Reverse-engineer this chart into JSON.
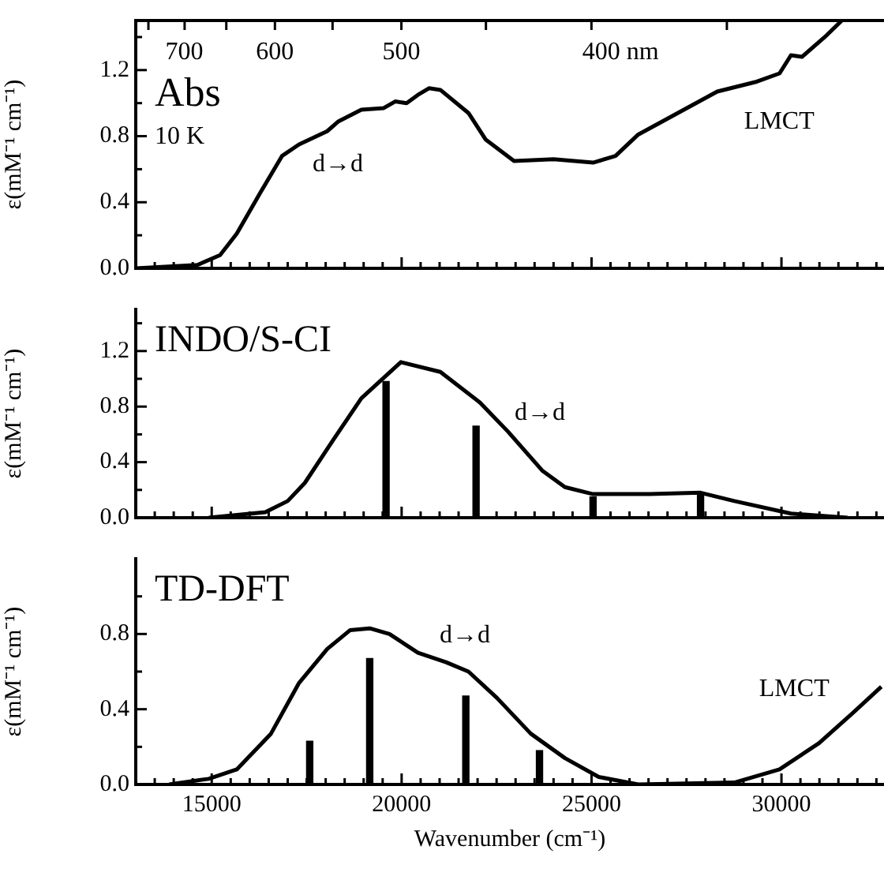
{
  "chart_data": [
    {
      "type": "line",
      "title": "Abs",
      "subtitle": "10 K",
      "ylabel": "ε(mM⁻¹ cm⁻¹)",
      "tick_labels": "y",
      "grid": false,
      "marker": "none",
      "xlim": [
        13000,
        32700
      ],
      "ylim": [
        0,
        1.5
      ],
      "xticks": [
        13000,
        {
          "value": 13500,
          "label": null
        },
        {
          "value": 14000,
          "label": null
        },
        {
          "value": 14500,
          "label": null
        },
        15000,
        {
          "value": 15500,
          "label": null
        },
        {
          "value": 16000,
          "label": null
        },
        {
          "value": 16500,
          "label": null
        },
        {
          "value": 17000,
          "label": null
        },
        {
          "value": 17500,
          "label": null
        },
        {
          "value": 18000,
          "label": null
        },
        {
          "value": 18500,
          "label": null
        },
        {
          "value": 19000,
          "label": null
        },
        {
          "value": 19500,
          "label": null
        },
        20000,
        {
          "value": 20500,
          "label": null
        },
        {
          "value": 21000,
          "label": null
        },
        {
          "value": 21500,
          "label": null
        },
        {
          "value": 22000,
          "label": null
        },
        {
          "value": 22500,
          "label": null
        },
        {
          "value": 23000,
          "label": null
        },
        {
          "value": 23500,
          "label": null
        },
        {
          "value": 24000,
          "label": null
        },
        {
          "value": 24500,
          "label": null
        },
        25000,
        {
          "value": 25500,
          "label": null
        },
        {
          "value": 26000,
          "label": null
        },
        {
          "value": 26500,
          "label": null
        },
        {
          "value": 27000,
          "label": null
        },
        {
          "value": 27500,
          "label": null
        },
        {
          "value": 28000,
          "label": null
        },
        {
          "value": 28500,
          "label": null
        },
        {
          "value": 29000,
          "label": null
        },
        {
          "value": 29500,
          "label": null
        },
        30000,
        {
          "value": 30500,
          "label": null
        },
        {
          "value": 31000,
          "label": null
        },
        {
          "value": 31500,
          "label": null
        },
        {
          "value": 32000,
          "label": null
        },
        {
          "value": 32500,
          "label": null
        }
      ],
      "yticks": [
        {
          "value": 0,
          "label": "0.0"
        },
        {
          "value": 0.2,
          "label": null
        },
        {
          "value": 0.4,
          "label": "0.4"
        },
        {
          "value": 0.6,
          "label": null
        },
        {
          "value": 0.8,
          "label": "0.8"
        },
        {
          "value": 1,
          "label": null
        },
        {
          "value": 1.2,
          "label": "1.2"
        },
        {
          "value": 1.4,
          "label": null
        }
      ],
      "annotations": [
        "700",
        "600",
        "500",
        "400 nm",
        "d→d",
        "LMCT"
      ],
      "series": [
        {
          "color": "#000000",
          "x": [
            13000,
            14620,
            15220,
            15660,
            16260,
            16850,
            17300,
            18040,
            18340,
            18940,
            19530,
            19830,
            20130,
            20430,
            20720,
            21020,
            21760,
            22210,
            22960,
            24000,
            25040,
            25630,
            26230,
            27270,
            28310,
            29350,
            29950,
            30250,
            30540,
            31140,
            31590
          ],
          "values": [
            0,
            0.02,
            0.08,
            0.21,
            0.45,
            0.68,
            0.75,
            0.83,
            0.89,
            0.96,
            0.97,
            1.01,
            1.0,
            1.05,
            1.09,
            1.08,
            0.94,
            0.78,
            0.65,
            0.66,
            0.64,
            0.68,
            0.81,
            0.94,
            1.07,
            1.13,
            1.18,
            1.29,
            1.28,
            1.4,
            1.5
          ]
        }
      ]
    },
    {
      "type": "line",
      "title": "INDO/S-CI",
      "ylabel": "ε(mM⁻¹ cm⁻¹)",
      "tick_labels": "y",
      "grid": false,
      "marker": "none",
      "xlim": [
        13000,
        32700
      ],
      "ylim": [
        0,
        1.5
      ],
      "xticks": [
        13000,
        {
          "value": 13500,
          "label": null
        },
        {
          "value": 14000,
          "label": null
        },
        {
          "value": 14500,
          "label": null
        },
        15000,
        {
          "value": 15500,
          "label": null
        },
        {
          "value": 16000,
          "label": null
        },
        {
          "value": 16500,
          "label": null
        },
        {
          "value": 17000,
          "label": null
        },
        {
          "value": 17500,
          "label": null
        },
        {
          "value": 18000,
          "label": null
        },
        {
          "value": 18500,
          "label": null
        },
        {
          "value": 19000,
          "label": null
        },
        {
          "value": 19500,
          "label": null
        },
        20000,
        {
          "value": 20500,
          "label": null
        },
        {
          "value": 21000,
          "label": null
        },
        {
          "value": 21500,
          "label": null
        },
        {
          "value": 22000,
          "label": null
        },
        {
          "value": 22500,
          "label": null
        },
        {
          "value": 23000,
          "label": null
        },
        {
          "value": 23500,
          "label": null
        },
        {
          "value": 24000,
          "label": null
        },
        {
          "value": 24500,
          "label": null
        },
        25000,
        {
          "value": 25500,
          "label": null
        },
        {
          "value": 26000,
          "label": null
        },
        {
          "value": 26500,
          "label": null
        },
        {
          "value": 27000,
          "label": null
        },
        {
          "value": 27500,
          "label": null
        },
        {
          "value": 28000,
          "label": null
        },
        {
          "value": 28500,
          "label": null
        },
        {
          "value": 29000,
          "label": null
        },
        {
          "value": 29500,
          "label": null
        },
        30000,
        {
          "value": 30500,
          "label": null
        },
        {
          "value": 31000,
          "label": null
        },
        {
          "value": 31500,
          "label": null
        },
        {
          "value": 32000,
          "label": null
        },
        {
          "value": 32500,
          "label": null
        }
      ],
      "yticks": [
        {
          "value": 0,
          "label": "0.0"
        },
        {
          "value": 0.2,
          "label": null
        },
        {
          "value": 0.4,
          "label": "0.4"
        },
        {
          "value": 0.6,
          "label": null
        },
        {
          "value": 0.8,
          "label": "0.8"
        },
        {
          "value": 1,
          "label": null
        },
        {
          "value": 1.2,
          "label": "1.2"
        },
        {
          "value": 1.4,
          "label": null
        }
      ],
      "annotations": [
        "d→d"
      ],
      "series": [
        {
          "color": "#000000",
          "x": [
            14920,
            16410,
            17000,
            17450,
            18200,
            18940,
            19980,
            21020,
            22060,
            22800,
            23700,
            24300,
            25040,
            26530,
            27870,
            28760,
            30250,
            31740
          ],
          "values": [
            0,
            0.04,
            0.12,
            0.25,
            0.56,
            0.86,
            1.12,
            1.05,
            0.83,
            0.62,
            0.34,
            0.22,
            0.17,
            0.17,
            0.18,
            0.12,
            0.03,
            0
          ]
        },
        {
          "type": "bar",
          "color": "#000000",
          "x": [
            19590,
            21960,
            25040,
            27870
          ],
          "values": [
            0.98,
            0.66,
            0.15,
            0.17
          ]
        }
      ]
    },
    {
      "type": "line",
      "title": "TD-DFT",
      "ylabel": "ε(mM⁻¹ cm⁻¹)",
      "xlabel": "Wavenumber (cm⁻¹)",
      "grid": false,
      "marker": "none",
      "xlim": [
        13000,
        32700
      ],
      "ylim": [
        0,
        1.2
      ],
      "xticks": [
        {
          "value": 13000,
          "label": null
        },
        {
          "value": 13500,
          "label": null
        },
        {
          "value": 14000,
          "label": null
        },
        {
          "value": 14500,
          "label": null
        },
        15000,
        {
          "value": 15500,
          "label": null
        },
        {
          "value": 16000,
          "label": null
        },
        {
          "value": 16500,
          "label": null
        },
        {
          "value": 17000,
          "label": null
        },
        {
          "value": 17500,
          "label": null
        },
        {
          "value": 18000,
          "label": null
        },
        {
          "value": 18500,
          "label": null
        },
        {
          "value": 19000,
          "label": null
        },
        {
          "value": 19500,
          "label": null
        },
        20000,
        {
          "value": 20500,
          "label": null
        },
        {
          "value": 21000,
          "label": null
        },
        {
          "value": 21500,
          "label": null
        },
        {
          "value": 22000,
          "label": null
        },
        {
          "value": 22500,
          "label": null
        },
        {
          "value": 23000,
          "label": null
        },
        {
          "value": 23500,
          "label": null
        },
        {
          "value": 24000,
          "label": null
        },
        {
          "value": 24500,
          "label": null
        },
        25000,
        {
          "value": 25500,
          "label": null
        },
        {
          "value": 26000,
          "label": null
        },
        {
          "value": 26500,
          "label": null
        },
        {
          "value": 27000,
          "label": null
        },
        {
          "value": 27500,
          "label": null
        },
        {
          "value": 28000,
          "label": null
        },
        {
          "value": 28500,
          "label": null
        },
        {
          "value": 29000,
          "label": null
        },
        {
          "value": 29500,
          "label": null
        },
        30000,
        {
          "value": 30500,
          "label": null
        },
        {
          "value": 31000,
          "label": null
        },
        {
          "value": 31500,
          "label": null
        },
        {
          "value": 32000,
          "label": null
        },
        {
          "value": 32500,
          "label": null
        }
      ],
      "yticks": [
        {
          "value": 0,
          "label": "0.0"
        },
        {
          "value": 0.2,
          "label": null
        },
        {
          "value": 0.4,
          "label": "0.4"
        },
        {
          "value": 0.6,
          "label": null
        },
        {
          "value": 0.8,
          "label": "0.8"
        },
        {
          "value": 1,
          "label": null
        }
      ],
      "annotations": [
        "d→d",
        "LMCT"
      ],
      "series": [
        {
          "color": "#000000",
          "x": [
            13880,
            14920,
            15660,
            16560,
            17300,
            18040,
            18640,
            19160,
            19680,
            20430,
            21170,
            21760,
            22510,
            23400,
            24300,
            25190,
            26230,
            28760,
            29950,
            30990,
            31880,
            32630
          ],
          "values": [
            0,
            0.03,
            0.08,
            0.27,
            0.54,
            0.72,
            0.82,
            0.83,
            0.8,
            0.7,
            0.65,
            0.6,
            0.46,
            0.27,
            0.14,
            0.04,
            0,
            0.01,
            0.08,
            0.22,
            0.38,
            0.52
          ]
        },
        {
          "type": "bar",
          "color": "#000000",
          "x": [
            17580,
            19160,
            21690,
            23630
          ],
          "values": [
            0.23,
            0.67,
            0.47,
            0.18
          ]
        }
      ]
    }
  ]
}
